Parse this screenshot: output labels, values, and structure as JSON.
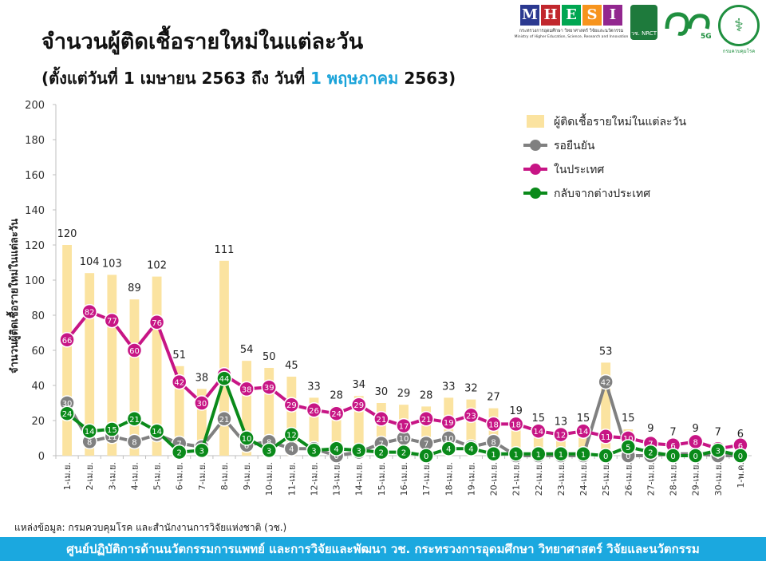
{
  "header": {
    "title": "จำนวนผู้ติดเชื้อรายใหม่ในแต่ละวัน",
    "subtitle_prefix": "(ตั้งแต่วันที่ 1 เมษายน 2563 ถึง วันที่",
    "subtitle_highlight": "1 พฤษภาคม",
    "subtitle_suffix": "2563)"
  },
  "logos": {
    "mhesi_letters": [
      "M",
      "H",
      "E",
      "S",
      "I"
    ],
    "mhesi_colors": [
      "#2b3990",
      "#c1272d",
      "#00a651",
      "#f7941d",
      "#92278f"
    ],
    "mhesi_thai": "กระทรวงการอุดมศึกษา วิทยาศาสตร์ วิจัยและนวัตกรรม",
    "mhesi_en": "Ministry of Higher Education, Science, Research and Innovation",
    "nrct_label": "วช. NRCT",
    "anniv_label": "5G",
    "moph_label": "กรมควบคุมโรค"
  },
  "chart_data": {
    "type": "bar+line",
    "title": "จำนวนผู้ติดเชื้อรายใหม่ในแต่ละวัน",
    "ylabel": "จำนวนผู้ติดเชื้อรายใหม่ในแต่ละวัน",
    "xlabel": "",
    "ylim": [
      0,
      200
    ],
    "yticks": [
      0,
      20,
      40,
      60,
      80,
      100,
      120,
      140,
      160,
      180,
      200
    ],
    "grid": false,
    "legend_position": "top-right",
    "categories": [
      "1-เม.ย.",
      "2-เม.ย.",
      "3-เม.ย.",
      "4-เม.ย.",
      "5-เม.ย.",
      "6-เม.ย.",
      "7-เม.ย.",
      "8-เม.ย.",
      "9-เม.ย.",
      "10-เม.ย.",
      "11-เม.ย.",
      "12-เม.ย.",
      "13-เม.ย.",
      "14-เม.ย.",
      "15-เม.ย.",
      "16-เม.ย.",
      "17-เม.ย.",
      "18-เม.ย.",
      "19-เม.ย.",
      "20-เม.ย.",
      "21-เม.ย.",
      "22-เม.ย.",
      "23-เม.ย.",
      "24-เม.ย.",
      "25-เม.ย.",
      "26-เม.ย.",
      "27-เม.ย.",
      "28-เม.ย.",
      "29-เม.ย.",
      "30-เม.ย.",
      "1-พ.ค."
    ],
    "series": [
      {
        "name": "ผู้ติดเชื้อรายใหม่ในแต่ละวัน",
        "kind": "bar",
        "color": "#fbe3a0",
        "values": [
          120,
          104,
          103,
          89,
          102,
          51,
          38,
          111,
          54,
          50,
          45,
          33,
          28,
          34,
          30,
          29,
          28,
          33,
          32,
          27,
          19,
          15,
          13,
          15,
          53,
          15,
          9,
          7,
          9,
          7,
          6
        ]
      },
      {
        "name": "รอยืนยัน",
        "kind": "line",
        "color": "#808080",
        "values": [
          30,
          8,
          11,
          8,
          12,
          7,
          5,
          21,
          6,
          8,
          4,
          4,
          0,
          2,
          7,
          10,
          7,
          10,
          5,
          8,
          0,
          0,
          0,
          0,
          42,
          0,
          0,
          1,
          1,
          0,
          0
        ]
      },
      {
        "name": "ในประเทศ",
        "kind": "line",
        "color": "#c71585",
        "values": [
          66,
          82,
          77,
          60,
          76,
          42,
          30,
          46,
          38,
          39,
          29,
          26,
          24,
          29,
          21,
          17,
          21,
          19,
          23,
          18,
          18,
          14,
          12,
          14,
          11,
          10,
          7,
          6,
          8,
          4,
          6
        ]
      },
      {
        "name": "กลับจากต่างประเทศ",
        "kind": "line",
        "color": "#0a8a1a",
        "values": [
          24,
          14,
          15,
          21,
          14,
          2,
          3,
          44,
          10,
          3,
          12,
          3,
          4,
          3,
          2,
          2,
          0,
          4,
          4,
          1,
          1,
          1,
          1,
          1,
          0,
          5,
          2,
          0,
          0,
          3,
          0
        ]
      }
    ]
  },
  "footer": {
    "source": "แหล่งข้อมูล: กรมควบคุมโรค และสำนักงานการวิจัยแห่งชาติ (วช.)",
    "banner": "ศูนย์ปฏิบัติการด้านนวัตกรรมการแพทย์ และการวิจัยและพัฒนา   วช.   กระทรวงการอุดมศึกษา วิทยาศาสตร์ วิจัยและนวัตกรรม"
  }
}
